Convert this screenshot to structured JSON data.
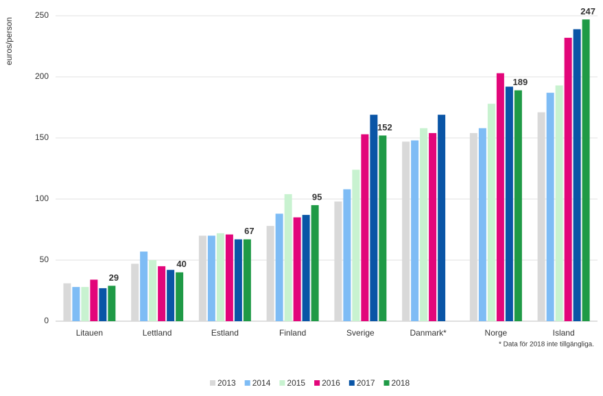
{
  "chart_data": {
    "type": "bar",
    "y_label": "euros/person",
    "categories": [
      "Litauen",
      "Lettland",
      "Estland",
      "Finland",
      "Sverige",
      "Danmark*",
      "Norge",
      "Island"
    ],
    "series": [
      {
        "name": "2013",
        "color": "#d9d9d9",
        "values": [
          31,
          47,
          70,
          78,
          98,
          147,
          154,
          171
        ]
      },
      {
        "name": "2014",
        "color": "#7ebcf5",
        "values": [
          28,
          57,
          70,
          88,
          108,
          148,
          158,
          187
        ]
      },
      {
        "name": "2015",
        "color": "#c8f2d0",
        "values": [
          28,
          50,
          72,
          104,
          124,
          158,
          178,
          193
        ]
      },
      {
        "name": "2016",
        "color": "#e2067a",
        "values": [
          34,
          45,
          71,
          85,
          153,
          154,
          203,
          232
        ]
      },
      {
        "name": "2017",
        "color": "#0a55a6",
        "values": [
          27,
          42,
          67,
          87,
          169,
          169,
          192,
          239
        ]
      },
      {
        "name": "2018",
        "color": "#1f9a46",
        "values": [
          29,
          40,
          67,
          95,
          152,
          null,
          189,
          247
        ],
        "show_values": true
      }
    ],
    "ylim": [
      0,
      250
    ],
    "yticks": [
      0,
      50,
      100,
      150,
      200,
      250
    ],
    "grid": true,
    "legend": "bottom",
    "footnote": "* Data för 2018 inte tillgängliga."
  }
}
